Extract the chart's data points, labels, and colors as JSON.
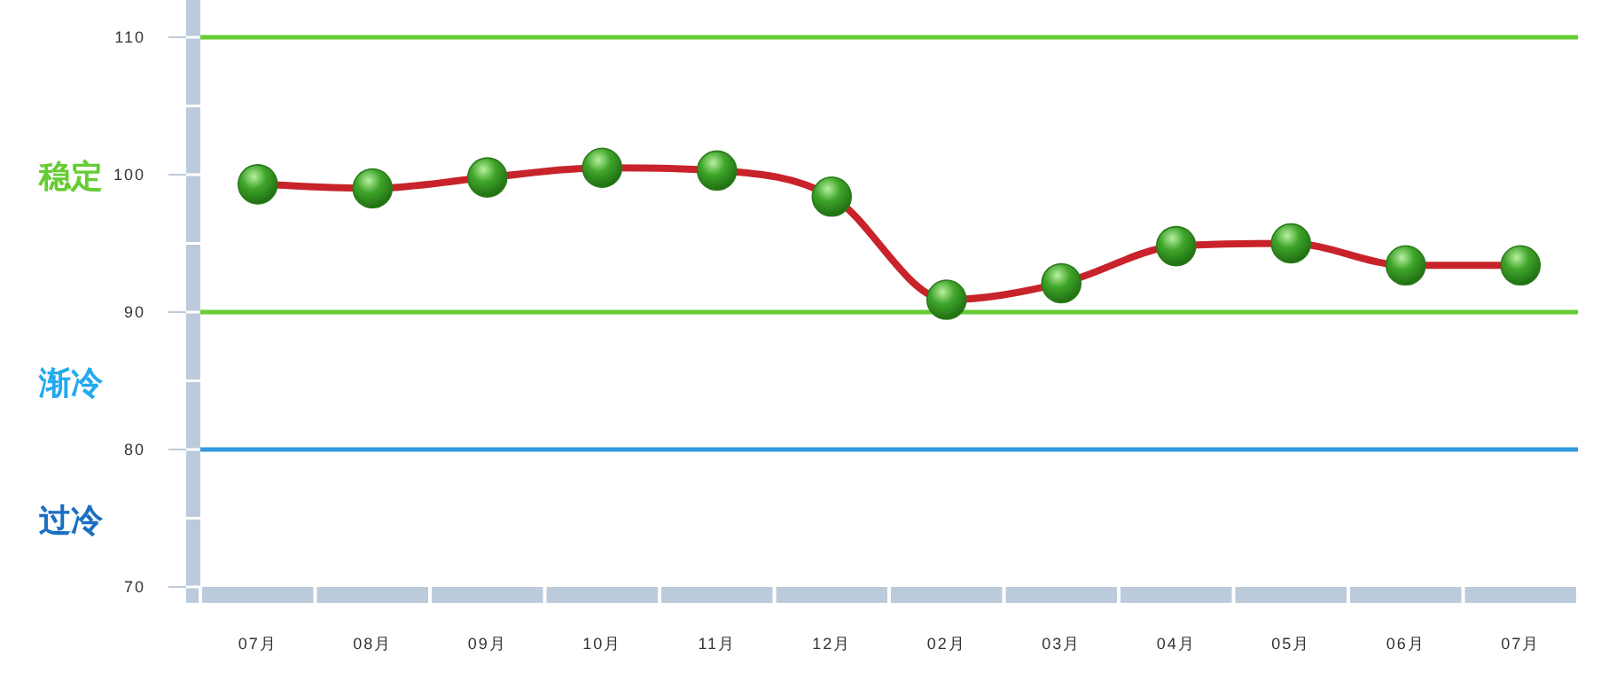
{
  "chart_data": {
    "type": "line",
    "categories": [
      "07月",
      "08月",
      "09月",
      "10月",
      "11月",
      "12月",
      "02月",
      "03月",
      "04月",
      "05月",
      "06月",
      "07月"
    ],
    "series": [
      {
        "color": "#c8232a",
        "values": [
          99.3,
          99.0,
          99.8,
          100.5,
          100.3,
          98.4,
          90.9,
          92.1,
          94.8,
          95.0,
          93.4,
          93.4
        ]
      }
    ],
    "ylim": [
      70,
      110
    ],
    "yticks": [
      70,
      80,
      90,
      100,
      110
    ],
    "marker": "circle",
    "line_style": "solid",
    "ref_lines": [
      {
        "axis": "y",
        "value": 110,
        "color": "#66cc33"
      },
      {
        "axis": "y",
        "value": 90,
        "color": "#66cc33"
      },
      {
        "axis": "y",
        "value": 80,
        "color": "#3399dd"
      }
    ],
    "annotations": [
      "稳定",
      "渐冷",
      "过冷"
    ]
  }
}
